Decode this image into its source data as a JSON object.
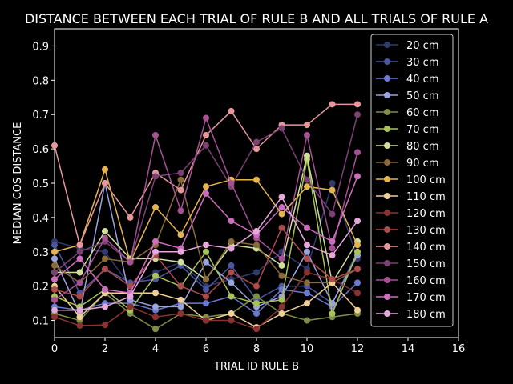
{
  "chart_data": {
    "type": "line",
    "title": "DISTANCE BETWEEN EACH TRIAL OF RULE B AND ALL TRIALS OF RULE A",
    "xlabel": "TRIAL ID RULE B",
    "ylabel": "MEDIAN COS DISTANCE",
    "xlim": [
      0,
      16
    ],
    "ylim": [
      0.05,
      0.95
    ],
    "xticks": [
      "0",
      "2",
      "4",
      "6",
      "8",
      "10",
      "12",
      "14",
      "16"
    ],
    "yticks": [
      "0.1",
      "0.2",
      "0.3",
      "0.4",
      "0.5",
      "0.6",
      "0.7",
      "0.8",
      "0.9"
    ],
    "legend_position": "upper-right",
    "x": [
      0,
      1,
      2,
      3,
      4,
      5,
      6,
      7,
      8,
      9,
      10,
      11,
      12
    ],
    "series": [
      {
        "name": "20 cm",
        "color": "#2f3a6e",
        "values": [
          0.33,
          0.31,
          0.3,
          0.2,
          0.24,
          0.27,
          0.2,
          0.22,
          0.24,
          0.3,
          0.25,
          0.5,
          0.28
        ]
      },
      {
        "name": "30 cm",
        "color": "#4a56a0",
        "values": [
          0.32,
          0.18,
          0.25,
          0.21,
          0.22,
          0.26,
          0.19,
          0.26,
          0.16,
          0.2,
          0.2,
          0.15,
          0.3
        ]
      },
      {
        "name": "40 cm",
        "color": "#6b78cf",
        "values": [
          0.14,
          0.13,
          0.15,
          0.15,
          0.13,
          0.15,
          0.15,
          0.17,
          0.12,
          0.19,
          0.18,
          0.14,
          0.21
        ]
      },
      {
        "name": "50 cm",
        "color": "#9aa3dd",
        "values": [
          0.28,
          0.12,
          0.5,
          0.16,
          0.14,
          0.14,
          0.27,
          0.21,
          0.14,
          0.17,
          0.3,
          0.15,
          0.29
        ]
      },
      {
        "name": "60 cm",
        "color": "#7f8f48",
        "values": [
          0.12,
          0.1,
          0.18,
          0.12,
          0.075,
          0.12,
          0.11,
          0.12,
          0.17,
          0.12,
          0.1,
          0.11,
          0.12
        ]
      },
      {
        "name": "70 cm",
        "color": "#a9c257",
        "values": [
          0.17,
          0.14,
          0.19,
          0.13,
          0.23,
          0.2,
          0.3,
          0.17,
          0.15,
          0.16,
          0.57,
          0.12,
          0.3
        ]
      },
      {
        "name": "80 cm",
        "color": "#cfdf9a",
        "values": [
          0.24,
          0.24,
          0.36,
          0.28,
          0.28,
          0.27,
          0.22,
          0.32,
          0.31,
          0.26,
          0.58,
          0.21,
          0.33
        ]
      },
      {
        "name": "90 cm",
        "color": "#8a6a36",
        "values": [
          0.26,
          0.21,
          0.28,
          0.27,
          0.32,
          0.51,
          0.22,
          0.33,
          0.32,
          0.23,
          0.21,
          0.21,
          0.25
        ]
      },
      {
        "name": "100 cm",
        "color": "#e6b44f",
        "values": [
          0.3,
          0.32,
          0.54,
          0.27,
          0.43,
          0.35,
          0.49,
          0.51,
          0.51,
          0.41,
          0.49,
          0.48,
          0.32
        ]
      },
      {
        "name": "110 cm",
        "color": "#efcf96",
        "values": [
          0.2,
          0.11,
          0.18,
          0.18,
          0.18,
          0.16,
          0.1,
          0.12,
          0.08,
          0.12,
          0.15,
          0.21,
          0.13
        ]
      },
      {
        "name": "120 cm",
        "color": "#8a3232",
        "values": [
          0.11,
          0.085,
          0.087,
          0.14,
          0.11,
          0.12,
          0.1,
          0.1,
          0.075,
          0.14,
          0.24,
          0.22,
          0.18
        ]
      },
      {
        "name": "130 cm",
        "color": "#ad4a4a",
        "values": [
          0.19,
          0.17,
          0.25,
          0.2,
          0.29,
          0.2,
          0.17,
          0.24,
          0.2,
          0.37,
          0.28,
          0.22,
          0.25
        ]
      },
      {
        "name": "140 cm",
        "color": "#e7969c",
        "values": [
          0.61,
          0.32,
          0.5,
          0.4,
          0.53,
          0.48,
          0.64,
          0.71,
          0.6,
          0.67,
          0.67,
          0.73,
          0.73
        ]
      },
      {
        "name": "150 cm",
        "color": "#7b4173",
        "values": [
          0.24,
          0.3,
          0.33,
          0.27,
          0.52,
          0.53,
          0.61,
          0.49,
          0.62,
          0.66,
          0.51,
          0.41,
          0.7
        ]
      },
      {
        "name": "160 cm",
        "color": "#a55194",
        "values": [
          0.16,
          0.21,
          0.34,
          0.27,
          0.64,
          0.42,
          0.69,
          0.5,
          0.34,
          0.28,
          0.64,
          0.31,
          0.59
        ]
      },
      {
        "name": "170 cm",
        "color": "#ce6dbd",
        "values": [
          0.22,
          0.28,
          0.19,
          0.18,
          0.33,
          0.31,
          0.47,
          0.39,
          0.35,
          0.43,
          0.37,
          0.33,
          0.52
        ]
      },
      {
        "name": "180 cm",
        "color": "#e6a8dc",
        "values": [
          0.13,
          0.13,
          0.14,
          0.17,
          0.3,
          0.3,
          0.32,
          0.31,
          0.36,
          0.46,
          0.32,
          0.29,
          0.39
        ]
      }
    ]
  }
}
